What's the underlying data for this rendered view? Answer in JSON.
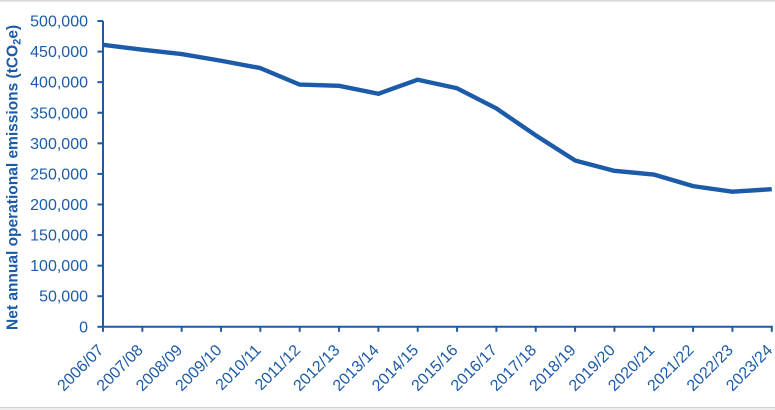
{
  "chart_data": {
    "type": "line",
    "title": "",
    "xlabel": "",
    "ylabel": "Net annual operational emissions (tCO2e)",
    "ylabel_parts": {
      "pre": "Net annual operational emissions (tCO",
      "sub": "2",
      "post": "e)"
    },
    "categories": [
      "2006/07",
      "2007/08",
      "2008/09",
      "2009/10",
      "2010/11",
      "2011/12",
      "2012/13",
      "2013/14",
      "2014/15",
      "2015/16",
      "2016/17",
      "2017/18",
      "2018/19",
      "2019/20",
      "2020/21",
      "2021/22",
      "2022/23",
      "2023/24"
    ],
    "series": [
      {
        "name": "Net annual operational emissions (tCO2e)",
        "values": [
          461000,
          453000,
          446000,
          435000,
          423000,
          396000,
          394000,
          381000,
          404000,
          390000,
          357000,
          313000,
          272000,
          255000,
          249000,
          230000,
          221000,
          225000
        ]
      }
    ],
    "ylim": [
      0,
      500000
    ],
    "ytick_step": 50000,
    "ytick_labels": [
      "0",
      "50,000",
      "100,000",
      "150,000",
      "200,000",
      "250,000",
      "300,000",
      "350,000",
      "400,000",
      "450,000",
      "500,000"
    ],
    "grid": false,
    "legend_position": "none",
    "colors": {
      "line": "#1c5ba8",
      "axis": "#1c5ba8",
      "text": "#1c5ba8"
    }
  }
}
